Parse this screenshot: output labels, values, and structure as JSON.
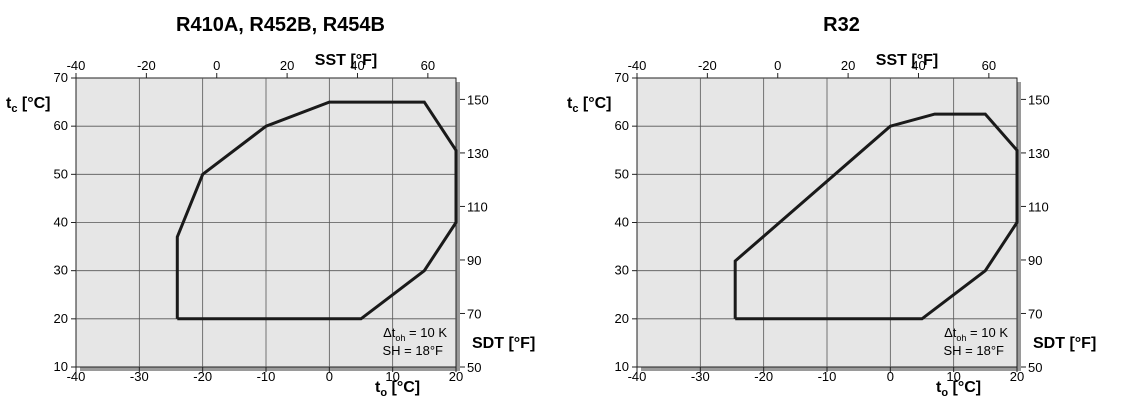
{
  "chart_data": [
    {
      "type": "line",
      "title": "R410A, R452B, R454B",
      "xlabel_sub": "t",
      "xlabel_subscript": "o",
      "xlabel_unit": " [°C]",
      "ylabel_sub": "t",
      "ylabel_subscript": "c",
      "ylabel_unit": " [°C]",
      "top_axis_label": "SST [°F]",
      "right_axis_label": "SDT [°F]",
      "xlim": [
        -40,
        20
      ],
      "ylim": [
        10,
        70
      ],
      "x_ticks": [
        "-40",
        "-30",
        "-20",
        "-10",
        "0",
        "10",
        "20"
      ],
      "y_ticks": [
        "10",
        "20",
        "30",
        "40",
        "50",
        "60",
        "70"
      ],
      "top_ticks": [
        "-40",
        "-20",
        "0",
        "20",
        "40",
        "60"
      ],
      "right_ticks": [
        "50",
        "70",
        "90",
        "110",
        "130",
        "150"
      ],
      "grid": true,
      "annotation_line1_prefix": "Δt",
      "annotation_line1_sub": "oh",
      "annotation_line1_suffix": " = 10 K",
      "annotation_line2": "SH = 18°F",
      "series": [
        {
          "x": [
            -24,
            -24,
            -20,
            -10,
            0,
            15,
            20,
            20,
            15,
            5,
            -24
          ],
          "y": [
            20,
            37,
            50,
            60,
            65,
            65,
            55,
            40,
            30,
            20,
            20
          ]
        }
      ]
    },
    {
      "type": "line",
      "title": "R32",
      "xlabel_sub": "t",
      "xlabel_subscript": "o",
      "xlabel_unit": " [°C]",
      "ylabel_sub": "t",
      "ylabel_subscript": "c",
      "ylabel_unit": " [°C]",
      "top_axis_label": "SST [°F]",
      "right_axis_label": "SDT [°F]",
      "xlim": [
        -40,
        20
      ],
      "ylim": [
        10,
        70
      ],
      "x_ticks": [
        "-40",
        "-30",
        "-20",
        "-10",
        "0",
        "10",
        "20"
      ],
      "y_ticks": [
        "10",
        "20",
        "30",
        "40",
        "50",
        "60",
        "70"
      ],
      "top_ticks": [
        "-40",
        "-20",
        "0",
        "20",
        "40",
        "60"
      ],
      "right_ticks": [
        "50",
        "70",
        "90",
        "110",
        "130",
        "150"
      ],
      "grid": true,
      "annotation_line1_prefix": "Δt",
      "annotation_line1_sub": "oh",
      "annotation_line1_suffix": " = 10 K",
      "annotation_line2": "SH = 18°F",
      "series": [
        {
          "x": [
            -24.5,
            -24.5,
            0,
            7,
            15,
            20,
            20,
            15,
            5,
            -24.5
          ],
          "y": [
            20,
            32,
            60,
            62.5,
            62.5,
            55,
            40,
            30,
            20,
            20
          ]
        }
      ]
    }
  ]
}
